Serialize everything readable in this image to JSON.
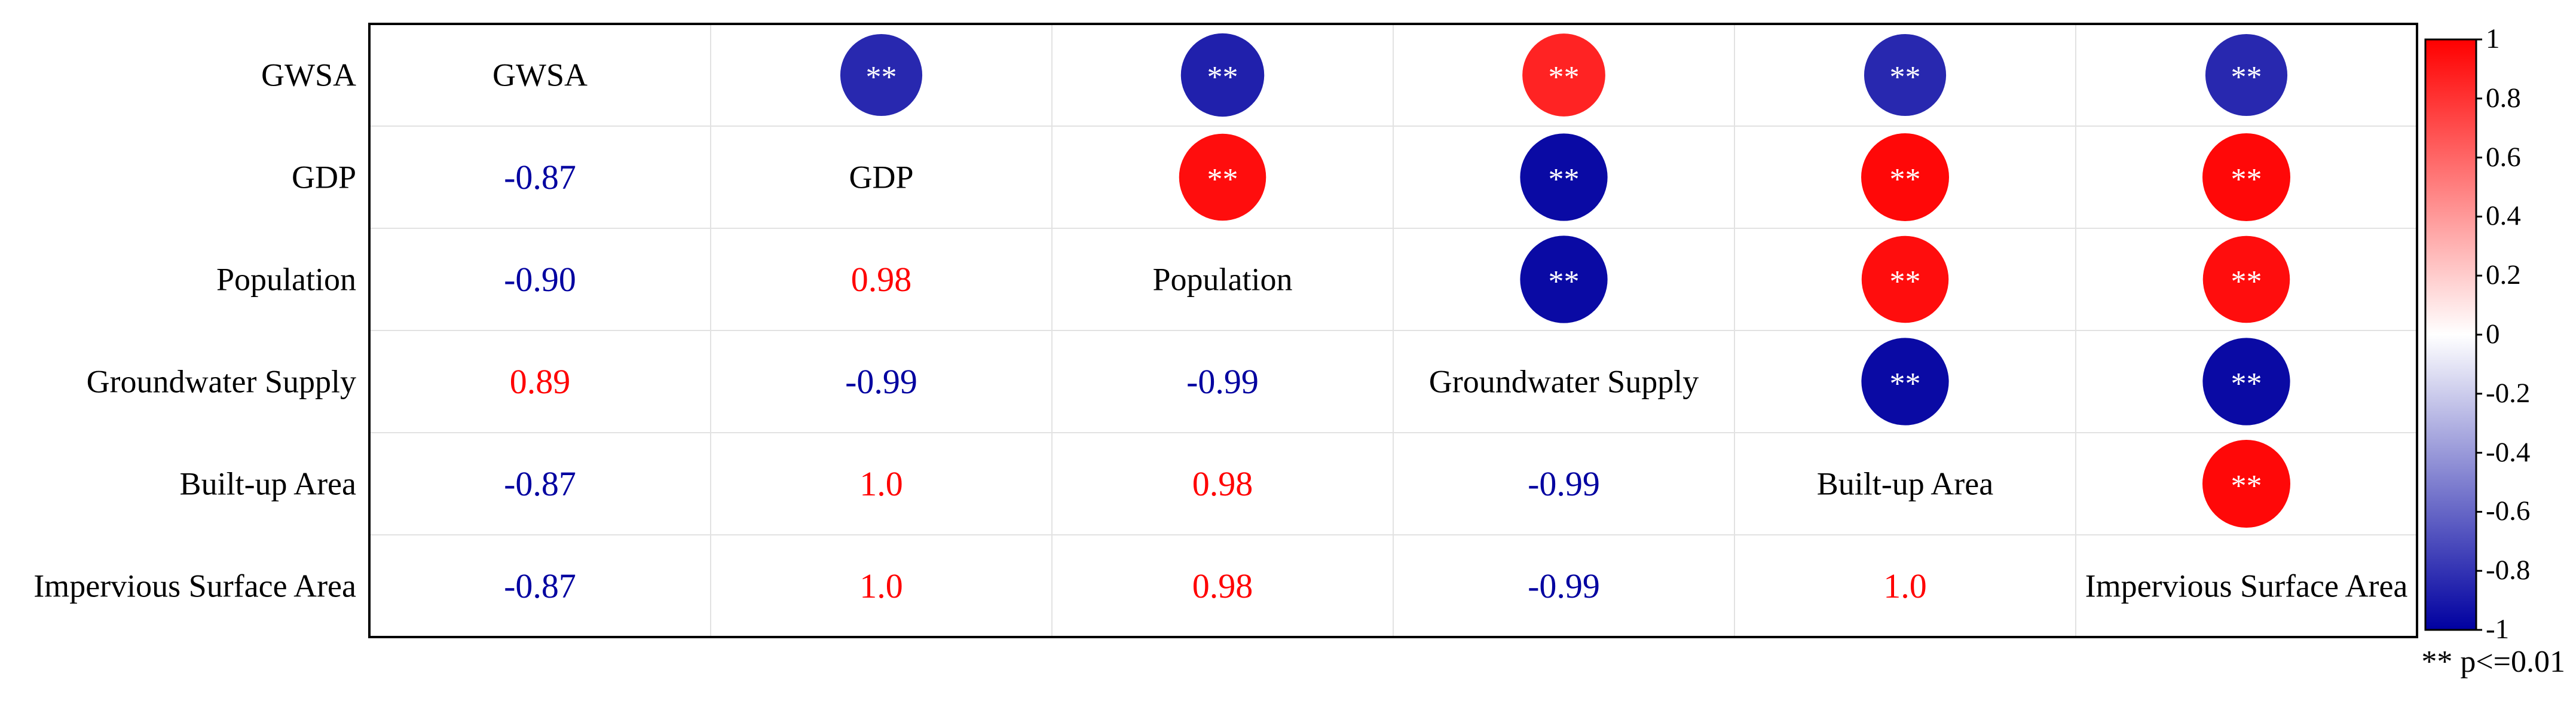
{
  "chart_data": {
    "type": "heatmap",
    "title": "",
    "variables": [
      "GWSA",
      "GDP",
      "Population",
      "Groundwater Supply",
      "Built-up Area",
      "Impervious Surface Area"
    ],
    "lower_triangle_labels": [
      {
        "row": 1,
        "col": 0,
        "value": -0.87,
        "label": "-0.87"
      },
      {
        "row": 2,
        "col": 0,
        "value": -0.9,
        "label": "-0.90"
      },
      {
        "row": 2,
        "col": 1,
        "value": 0.98,
        "label": "0.98"
      },
      {
        "row": 3,
        "col": 0,
        "value": 0.89,
        "label": "0.89"
      },
      {
        "row": 3,
        "col": 1,
        "value": -0.99,
        "label": "-0.99"
      },
      {
        "row": 3,
        "col": 2,
        "value": -0.99,
        "label": "-0.99"
      },
      {
        "row": 4,
        "col": 0,
        "value": -0.87,
        "label": "-0.87"
      },
      {
        "row": 4,
        "col": 1,
        "value": 1.0,
        "label": "1.0"
      },
      {
        "row": 4,
        "col": 2,
        "value": 0.98,
        "label": "0.98"
      },
      {
        "row": 4,
        "col": 3,
        "value": -0.99,
        "label": "-0.99"
      },
      {
        "row": 5,
        "col": 0,
        "value": -0.87,
        "label": "-0.87"
      },
      {
        "row": 5,
        "col": 1,
        "value": 1.0,
        "label": "1.0"
      },
      {
        "row": 5,
        "col": 2,
        "value": 0.98,
        "label": "0.98"
      },
      {
        "row": 5,
        "col": 3,
        "value": -0.99,
        "label": "-0.99"
      },
      {
        "row": 5,
        "col": 4,
        "value": 1.0,
        "label": "1.0"
      }
    ],
    "upper_triangle_circles": [
      {
        "row": 0,
        "col": 1,
        "value": -0.87,
        "sig": "**"
      },
      {
        "row": 0,
        "col": 2,
        "value": -0.9,
        "sig": "**"
      },
      {
        "row": 0,
        "col": 3,
        "value": 0.89,
        "sig": "**"
      },
      {
        "row": 0,
        "col": 4,
        "value": -0.87,
        "sig": "**"
      },
      {
        "row": 0,
        "col": 5,
        "value": -0.87,
        "sig": "**"
      },
      {
        "row": 1,
        "col": 2,
        "value": 0.98,
        "sig": "**"
      },
      {
        "row": 1,
        "col": 3,
        "value": -0.99,
        "sig": "**"
      },
      {
        "row": 1,
        "col": 4,
        "value": 1.0,
        "sig": "**"
      },
      {
        "row": 1,
        "col": 5,
        "value": 1.0,
        "sig": "**"
      },
      {
        "row": 2,
        "col": 3,
        "value": -0.99,
        "sig": "**"
      },
      {
        "row": 2,
        "col": 4,
        "value": 0.98,
        "sig": "**"
      },
      {
        "row": 2,
        "col": 5,
        "value": 0.98,
        "sig": "**"
      },
      {
        "row": 3,
        "col": 4,
        "value": -0.99,
        "sig": "**"
      },
      {
        "row": 3,
        "col": 5,
        "value": -0.99,
        "sig": "**"
      },
      {
        "row": 4,
        "col": 5,
        "value": 1.0,
        "sig": "**"
      }
    ],
    "colorbar": {
      "range": [
        -1,
        1
      ],
      "ticks": [
        "1",
        "0.8",
        "0.6",
        "0.4",
        "0.2",
        "0",
        "-0.2",
        "-0.4",
        "-0.6",
        "-0.8",
        "-1"
      ],
      "colors": {
        "negative": "#0000a0",
        "zero": "#ffffff",
        "positive": "#ff0000"
      }
    },
    "legend_note": "** p<=0.01"
  }
}
